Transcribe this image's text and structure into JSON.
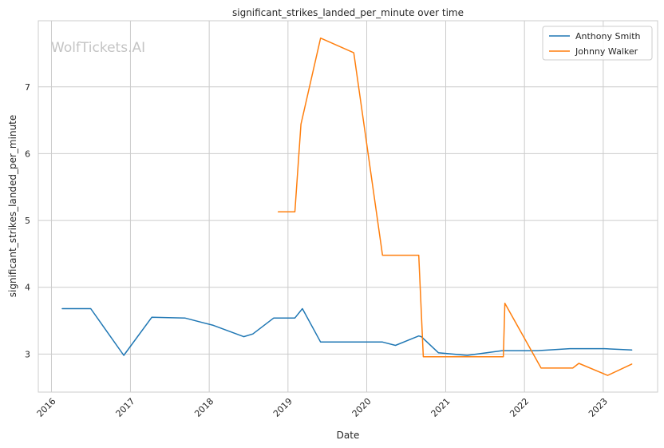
{
  "chart_data": {
    "type": "line",
    "title": "significant_strikes_landed_per_minute over time",
    "xlabel": "Date",
    "ylabel": "significant_strikes_landed_per_minute",
    "watermark": "WolfTickets.AI",
    "x_ticks": [
      "2016",
      "2017",
      "2018",
      "2019",
      "2020",
      "2021",
      "2022",
      "2023"
    ],
    "y_ticks": [
      3,
      4,
      5,
      6,
      7
    ],
    "xlim": [
      "2015-11-01",
      "2023-09-10"
    ],
    "ylim": [
      2.43,
      7.99
    ],
    "grid": true,
    "legend_position": "top-right",
    "colors": {
      "Anthony Smith": "#1f77b4",
      "Johnny Walker": "#ff7f0e"
    },
    "series": [
      {
        "name": "Anthony Smith",
        "color": "#1f77b4",
        "points": [
          {
            "x": "2016-02-20",
            "y": 3.68
          },
          {
            "x": "2016-07-01",
            "y": 3.68
          },
          {
            "x": "2016-12-01",
            "y": 2.98
          },
          {
            "x": "2017-04-10",
            "y": 3.55
          },
          {
            "x": "2017-09-10",
            "y": 3.54
          },
          {
            "x": "2018-01-20",
            "y": 3.43
          },
          {
            "x": "2018-06-10",
            "y": 3.26
          },
          {
            "x": "2018-07-22",
            "y": 3.3
          },
          {
            "x": "2018-10-27",
            "y": 3.54
          },
          {
            "x": "2019-02-02",
            "y": 3.54
          },
          {
            "x": "2019-03-09",
            "y": 3.68
          },
          {
            "x": "2019-06-01",
            "y": 3.18
          },
          {
            "x": "2020-03-14",
            "y": 3.18
          },
          {
            "x": "2020-05-13",
            "y": 3.13
          },
          {
            "x": "2020-08-29",
            "y": 3.27
          },
          {
            "x": "2020-09-10",
            "y": 3.26
          },
          {
            "x": "2020-11-28",
            "y": 3.02
          },
          {
            "x": "2021-04-10",
            "y": 2.98
          },
          {
            "x": "2021-09-20",
            "y": 3.05
          },
          {
            "x": "2022-03-01",
            "y": 3.05
          },
          {
            "x": "2022-07-30",
            "y": 3.08
          },
          {
            "x": "2023-01-07",
            "y": 3.08
          },
          {
            "x": "2023-05-13",
            "y": 3.06
          }
        ]
      },
      {
        "name": "Johnny Walker",
        "color": "#ff7f0e",
        "points": [
          {
            "x": "2018-11-17",
            "y": 5.13
          },
          {
            "x": "2019-02-02",
            "y": 5.13
          },
          {
            "x": "2019-03-02",
            "y": 6.44
          },
          {
            "x": "2019-06-01",
            "y": 7.73
          },
          {
            "x": "2019-11-02",
            "y": 7.51
          },
          {
            "x": "2020-03-14",
            "y": 4.48
          },
          {
            "x": "2020-08-29",
            "y": 4.48
          },
          {
            "x": "2020-09-19",
            "y": 2.96
          },
          {
            "x": "2021-09-25",
            "y": 2.96
          },
          {
            "x": "2021-10-02",
            "y": 3.76
          },
          {
            "x": "2022-03-19",
            "y": 2.79
          },
          {
            "x": "2022-08-13",
            "y": 2.79
          },
          {
            "x": "2022-09-10",
            "y": 2.86
          },
          {
            "x": "2023-01-21",
            "y": 2.68
          },
          {
            "x": "2023-05-13",
            "y": 2.85
          }
        ]
      }
    ]
  }
}
